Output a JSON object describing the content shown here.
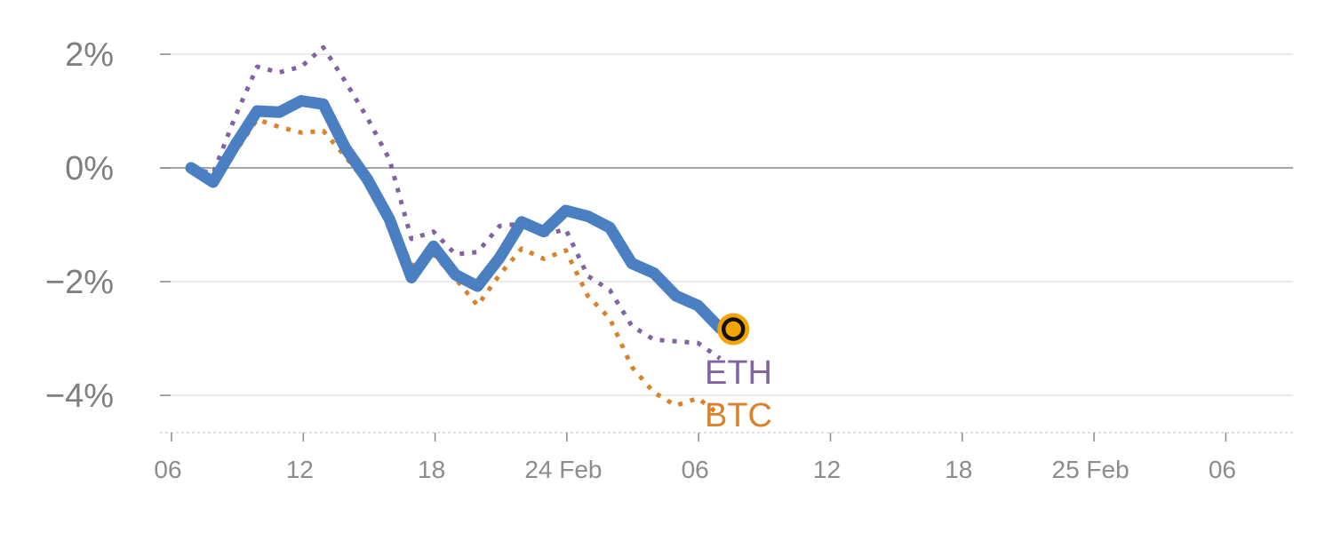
{
  "chart_data": {
    "type": "line",
    "title": "",
    "xlabel": "",
    "ylabel": "",
    "ylim": [
      -4.6,
      2.1
    ],
    "grid": true,
    "y_ticks": [
      {
        "value": 2,
        "label": "2%"
      },
      {
        "value": 0,
        "label": "0%"
      },
      {
        "value": -2,
        "label": "−2%"
      },
      {
        "value": -4,
        "label": "−4%"
      }
    ],
    "x_ticks": [
      "06",
      "12",
      "18",
      "24 Feb",
      "06",
      "12",
      "18",
      "25 Feb",
      "06"
    ],
    "series": [
      {
        "name": "",
        "color": "#4a7fc1",
        "style": "solid",
        "end_marker": true,
        "marker_color": "#f5a300",
        "y": [
          0.0,
          -0.25,
          0.4,
          1.0,
          0.98,
          1.18,
          1.12,
          0.35,
          -0.2,
          -0.9,
          -1.93,
          -1.38,
          -1.88,
          -2.08,
          -1.58,
          -0.95,
          -1.12,
          -0.75,
          -0.85,
          -1.05,
          -1.68,
          -1.85,
          -2.25,
          -2.42,
          -2.82
        ]
      },
      {
        "name": "ETH",
        "color": "#8064a2",
        "style": "dotted",
        "y": [
          0.0,
          -0.1,
          0.9,
          1.78,
          1.68,
          1.78,
          2.12,
          1.52,
          0.88,
          0.15,
          -1.25,
          -1.12,
          -1.52,
          -1.48,
          -1.02,
          -0.98,
          -1.18,
          -1.08,
          -1.9,
          -2.15,
          -2.78,
          -3.02,
          -3.05,
          -3.08,
          -3.35
        ]
      },
      {
        "name": "BTC",
        "color": "#d9822b",
        "style": "dotted",
        "y": [
          0.0,
          -0.12,
          0.28,
          0.85,
          0.72,
          0.62,
          0.65,
          0.2,
          -0.28,
          -0.82,
          -1.72,
          -1.52,
          -1.95,
          -2.42,
          -1.88,
          -1.42,
          -1.6,
          -1.45,
          -2.25,
          -2.65,
          -3.5,
          -3.95,
          -4.18,
          -4.05,
          -4.35
        ]
      }
    ]
  }
}
